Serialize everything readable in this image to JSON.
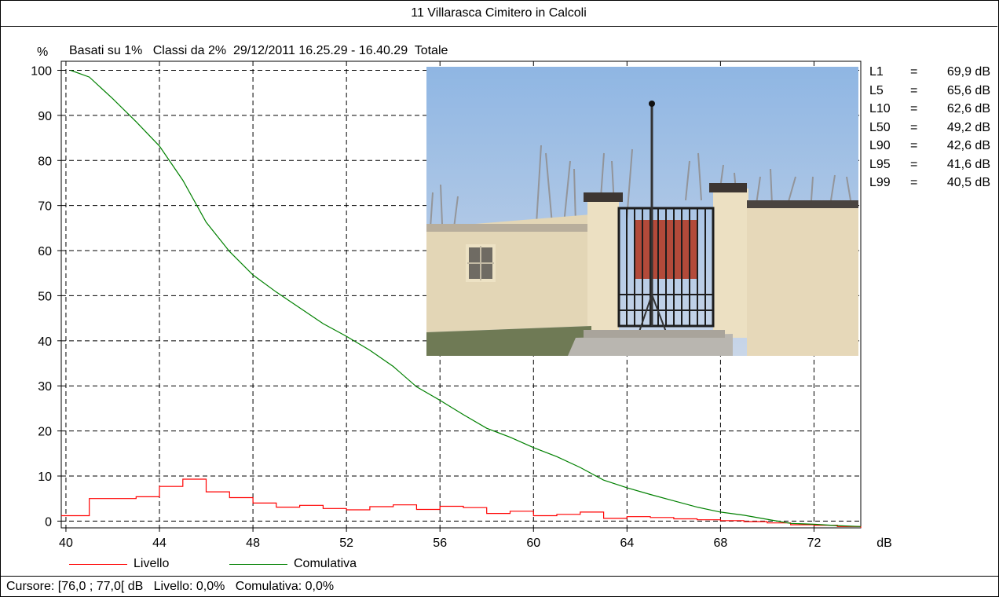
{
  "title": "11 Villarasca Cimitero in Calcoli",
  "subtitle": "Basati su 1%   Classi da 2%  29/12/2011 16.25.29 - 16.40.29  Totale",
  "y_unit": "%",
  "x_unit": "dB",
  "stats": [
    {
      "name": "L1",
      "eq": "=",
      "value": "69,9 dB"
    },
    {
      "name": "L5",
      "eq": "=",
      "value": "65,6 dB"
    },
    {
      "name": "L10",
      "eq": "=",
      "value": "62,6 dB"
    },
    {
      "name": "L50",
      "eq": "=",
      "value": "49,2 dB"
    },
    {
      "name": "L90",
      "eq": "=",
      "value": "42,6 dB"
    },
    {
      "name": "L95",
      "eq": "=",
      "value": "41,6 dB"
    },
    {
      "name": "L99",
      "eq": "=",
      "value": "40,5 dB"
    }
  ],
  "legend": {
    "livello_label": "Livello",
    "cumulativa_label": "Comulativa"
  },
  "status": "Cursore: [76,0 ; 77,0[ dB   Livello: 0,0%   Comulativa: 0,0%",
  "colors": {
    "livello": "#ff0000",
    "cumulativa": "#008000",
    "grid": "#000000"
  },
  "chart_data": {
    "type": "line",
    "title": "11 Villarasca Cimitero in Calcoli",
    "xlabel": "dB",
    "ylabel": "%",
    "xlim": [
      39.8,
      74
    ],
    "ylim": [
      -1.5,
      102
    ],
    "x_ticks": [
      40,
      44,
      48,
      52,
      56,
      60,
      64,
      68,
      72
    ],
    "y_ticks": [
      0,
      10,
      20,
      30,
      40,
      50,
      60,
      70,
      80,
      90,
      100
    ],
    "grid": true,
    "legend": "bottom",
    "series": [
      {
        "name": "Livello",
        "style": "step",
        "x": [
          39.8,
          41,
          42,
          43,
          44,
          45,
          46,
          47,
          48,
          49,
          50,
          51,
          52,
          53,
          54,
          55,
          56,
          57,
          58,
          59,
          60,
          61,
          62,
          63,
          64,
          65,
          66,
          67,
          68,
          69,
          70,
          71,
          72,
          73,
          74
        ],
        "values": [
          1.2,
          5.0,
          5.0,
          5.4,
          7.7,
          9.3,
          6.5,
          5.2,
          4.0,
          3.1,
          3.5,
          2.8,
          2.5,
          3.2,
          3.6,
          2.6,
          3.3,
          3.0,
          1.7,
          2.2,
          1.2,
          1.5,
          2.0,
          0.6,
          1.0,
          0.8,
          0.5,
          0.3,
          0.1,
          -0.1,
          -0.4,
          -0.8,
          -0.9,
          -1.2,
          -1.5
        ]
      },
      {
        "name": "Comulativa",
        "style": "line",
        "x": [
          40.2,
          41,
          42,
          43,
          44,
          45,
          46,
          47,
          48,
          49,
          50,
          51,
          52,
          53,
          54,
          55,
          56,
          57,
          58,
          59,
          60,
          61,
          62,
          63,
          64,
          65,
          66,
          67,
          68,
          69,
          70,
          71,
          72,
          73,
          74
        ],
        "values": [
          100,
          98.5,
          93.7,
          88.6,
          83.2,
          75.6,
          66.3,
          59.8,
          54.6,
          50.8,
          47.3,
          43.8,
          41.0,
          37.9,
          34.3,
          29.8,
          26.8,
          23.6,
          20.6,
          18.6,
          16.3,
          14.3,
          11.9,
          9.1,
          7.4,
          5.9,
          4.5,
          3.1,
          2.0,
          1.3,
          0.4,
          -0.5,
          -0.7,
          -1.0,
          -1.2
        ]
      }
    ]
  }
}
